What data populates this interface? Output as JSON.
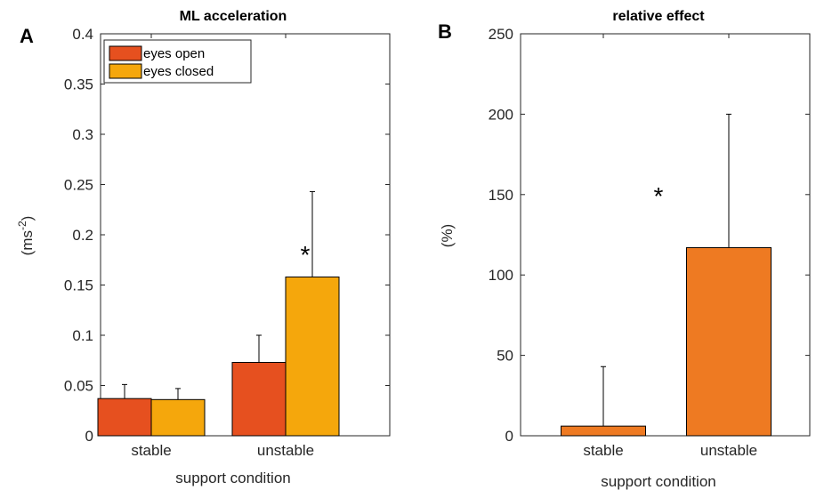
{
  "colors": {
    "eyes_open": "#e6501f",
    "eyes_closed": "#f5a70c",
    "relative": "#ee7a22",
    "axis": "#262626"
  },
  "chart_data": [
    {
      "panel_letter": "A",
      "type": "bar",
      "title": "ML acceleration",
      "xlabel": "support condition",
      "ylabel": "(ms-2)",
      "ylabel_base": "(ms",
      "ylabel_sup": "-2",
      "ylabel_close": ")",
      "ylim": [
        0,
        0.4
      ],
      "yticks": [
        "0",
        "0.05",
        "0.1",
        "0.15",
        "0.2",
        "0.25",
        "0.3",
        "0.35",
        "0.4"
      ],
      "yticks_values": [
        0,
        0.05,
        0.1,
        0.15,
        0.2,
        0.25,
        0.3,
        0.35,
        0.4
      ],
      "categories": [
        "stable",
        "unstable"
      ],
      "series": [
        {
          "name": "eyes open",
          "values": [
            0.037,
            0.073
          ],
          "error": [
            0.014,
            0.027
          ]
        },
        {
          "name": "eyes closed",
          "values": [
            0.036,
            0.158
          ],
          "error": [
            0.011,
            0.085
          ]
        }
      ],
      "legend": "top-left",
      "annotation": {
        "text": "*",
        "category": "unstable"
      }
    },
    {
      "panel_letter": "B",
      "type": "bar",
      "title": "relative effect",
      "xlabel": "support condition",
      "ylabel": "(%)",
      "ylim": [
        0,
        250
      ],
      "yticks": [
        "0",
        "50",
        "100",
        "150",
        "200",
        "250"
      ],
      "yticks_values": [
        0,
        50,
        100,
        150,
        200,
        250
      ],
      "categories": [
        "stable",
        "unstable"
      ],
      "series": [
        {
          "values": [
            6,
            117
          ],
          "error": [
            37,
            83
          ]
        }
      ],
      "annotation": {
        "text": "*",
        "category": "unstable"
      }
    }
  ]
}
